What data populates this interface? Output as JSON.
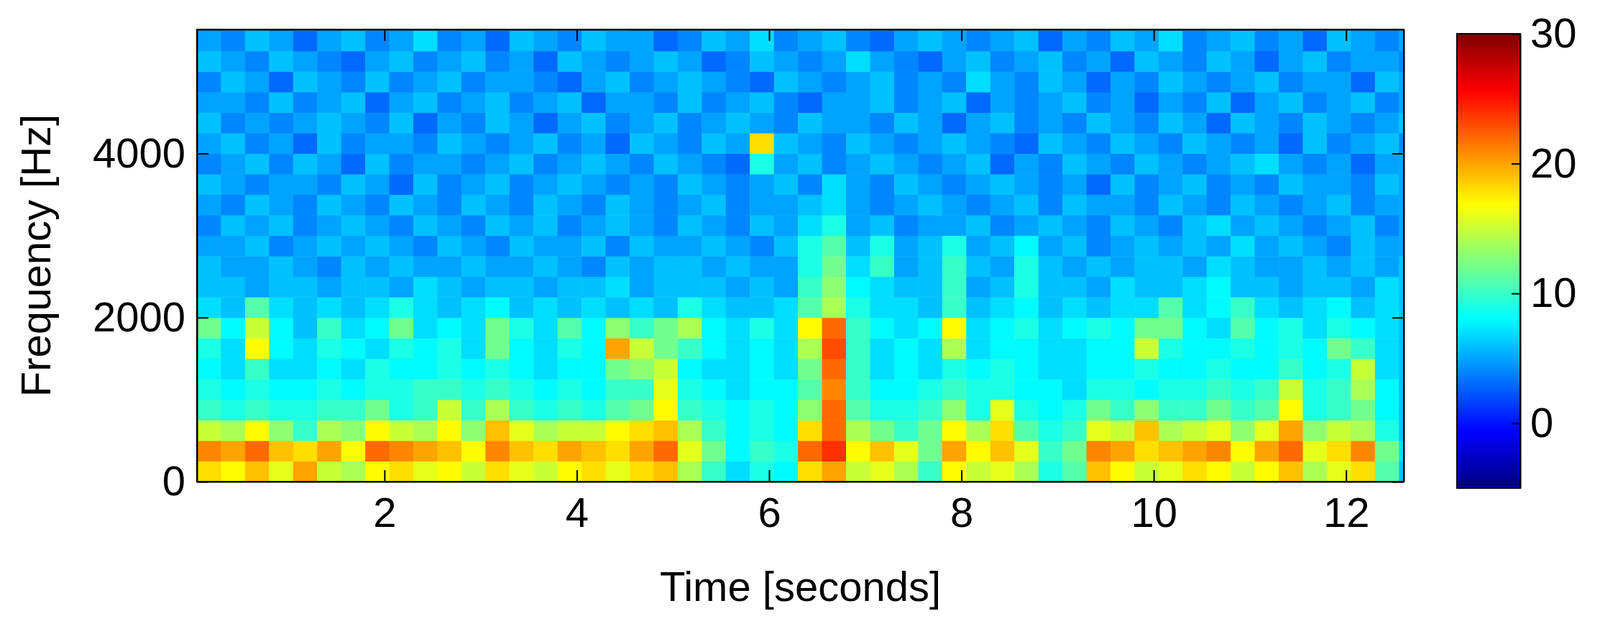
{
  "chart_data": {
    "type": "heatmap",
    "x_label": "Time [seconds]",
    "y_label": "Frequency [Hz]",
    "color": "jet",
    "xlim": [
      0.05,
      12.6
    ],
    "ylim": [
      0,
      5512
    ],
    "xticks": [
      2,
      4,
      6,
      8,
      10,
      12
    ],
    "yticks": [
      0,
      2000,
      4000
    ],
    "colorbar": {
      "lim": [
        -5,
        30
      ],
      "ticks": [
        0,
        10,
        20,
        30
      ]
    },
    "x": [
      0.175,
      0.425,
      0.675,
      0.925,
      1.175,
      1.425,
      1.675,
      1.925,
      2.175,
      2.425,
      2.675,
      2.925,
      3.175,
      3.425,
      3.675,
      3.925,
      4.175,
      4.425,
      4.675,
      4.925,
      5.175,
      5.425,
      5.675,
      5.925,
      6.175,
      6.425,
      6.675,
      6.925,
      7.175,
      7.425,
      7.675,
      7.925,
      8.175,
      8.425,
      8.675,
      8.925,
      9.175,
      9.425,
      9.675,
      9.925,
      10.175,
      10.425,
      10.675,
      10.925,
      11.175,
      11.425,
      11.675,
      11.925,
      12.175,
      12.425,
      12.675
    ],
    "y": [
      125,
      375,
      625,
      875,
      1125,
      1375,
      1625,
      1875,
      2125,
      2375,
      2625,
      2875,
      3125,
      3375,
      3625,
      3875,
      4125,
      4375,
      4625,
      4875,
      5125,
      5375,
      5625
    ],
    "cells": [
      [
        18,
        17,
        19,
        16,
        20,
        15,
        14,
        17,
        18,
        16,
        17,
        15,
        18,
        16,
        15,
        17,
        18,
        16,
        18,
        19,
        14,
        10,
        7,
        9,
        8,
        18,
        20,
        15,
        16,
        14,
        10,
        17,
        15,
        16,
        14,
        9,
        11,
        19,
        17,
        15,
        16,
        18,
        17,
        15,
        17,
        19,
        14,
        16,
        18,
        11,
        6
      ],
      [
        21,
        20,
        22,
        19,
        18,
        20,
        17,
        22,
        21,
        20,
        19,
        17,
        21,
        19,
        18,
        20,
        19,
        18,
        20,
        22,
        16,
        12,
        8,
        10,
        9,
        22,
        24,
        17,
        19,
        16,
        12,
        20,
        17,
        19,
        16,
        10,
        12,
        21,
        20,
        18,
        19,
        20,
        21,
        17,
        20,
        22,
        16,
        18,
        21,
        12,
        7
      ],
      [
        15,
        14,
        17,
        13,
        10,
        14,
        13,
        17,
        15,
        14,
        17,
        13,
        19,
        16,
        14,
        15,
        15,
        17,
        18,
        19,
        14,
        10,
        8,
        9,
        8,
        18,
        22,
        14,
        12,
        10,
        12,
        17,
        14,
        18,
        11,
        9,
        10,
        16,
        15,
        19,
        14,
        15,
        16,
        13,
        16,
        20,
        13,
        15,
        14,
        9,
        6
      ],
      [
        10,
        9,
        10,
        9,
        9,
        10,
        10,
        12,
        9,
        10,
        15,
        10,
        14,
        10,
        9,
        10,
        9,
        11,
        12,
        17,
        10,
        9,
        8,
        9,
        8,
        13,
        22,
        11,
        9,
        9,
        10,
        13,
        9,
        16,
        9,
        8,
        9,
        12,
        10,
        13,
        10,
        10,
        12,
        10,
        11,
        17,
        9,
        10,
        12,
        8,
        6
      ],
      [
        9,
        8,
        9,
        8,
        8,
        9,
        8,
        9,
        9,
        10,
        10,
        9,
        10,
        9,
        8,
        9,
        8,
        10,
        10,
        16,
        9,
        8,
        7,
        8,
        8,
        11,
        21,
        10,
        8,
        8,
        9,
        10,
        9,
        9,
        8,
        8,
        7,
        9,
        9,
        8,
        9,
        9,
        10,
        9,
        10,
        15,
        9,
        10,
        14,
        8,
        6
      ],
      [
        8,
        7,
        10,
        7,
        7,
        8,
        7,
        9,
        8,
        8,
        9,
        8,
        9,
        8,
        7,
        8,
        8,
        12,
        13,
        15,
        8,
        7,
        7,
        8,
        7,
        12,
        22,
        10,
        7,
        8,
        7,
        9,
        8,
        9,
        8,
        7,
        7,
        8,
        8,
        9,
        8,
        8,
        9,
        8,
        8,
        10,
        8,
        9,
        15,
        7,
        6
      ],
      [
        9,
        7,
        17,
        8,
        7,
        9,
        8,
        7,
        9,
        8,
        9,
        7,
        12,
        8,
        7,
        9,
        8,
        20,
        15,
        12,
        10,
        8,
        7,
        8,
        7,
        14,
        23,
        10,
        7,
        8,
        7,
        14,
        7,
        8,
        8,
        7,
        7,
        8,
        8,
        15,
        9,
        8,
        8,
        9,
        8,
        9,
        8,
        12,
        10,
        7,
        6
      ],
      [
        12,
        8,
        15,
        8,
        6,
        10,
        7,
        8,
        12,
        7,
        8,
        7,
        12,
        9,
        7,
        11,
        8,
        13,
        10,
        12,
        14,
        8,
        7,
        9,
        7,
        17,
        22,
        10,
        8,
        7,
        8,
        17,
        7,
        8,
        9,
        7,
        8,
        9,
        8,
        12,
        12,
        8,
        7,
        11,
        8,
        9,
        7,
        9,
        8,
        7,
        6
      ],
      [
        7,
        6,
        11,
        7,
        6,
        7,
        6,
        7,
        9,
        7,
        6,
        7,
        8,
        6,
        7,
        6,
        7,
        6,
        7,
        6,
        9,
        7,
        6,
        6,
        7,
        11,
        14,
        9,
        7,
        7,
        6,
        10,
        6,
        7,
        8,
        6,
        7,
        6,
        7,
        7,
        11,
        7,
        8,
        10,
        7,
        6,
        7,
        8,
        6,
        7,
        6
      ],
      [
        6,
        6,
        5,
        6,
        6,
        5,
        6,
        6,
        5,
        7,
        6,
        5,
        6,
        6,
        5,
        6,
        6,
        7,
        5,
        6,
        6,
        6,
        5,
        6,
        5,
        10,
        13,
        8,
        7,
        6,
        6,
        10,
        5,
        6,
        9,
        6,
        6,
        5,
        7,
        6,
        6,
        7,
        8,
        6,
        6,
        5,
        6,
        6,
        5,
        7,
        6
      ],
      [
        6,
        5,
        5,
        6,
        5,
        4,
        6,
        5,
        6,
        5,
        5,
        6,
        5,
        5,
        6,
        5,
        4,
        6,
        5,
        6,
        6,
        5,
        6,
        5,
        5,
        9,
        12,
        7,
        10,
        5,
        6,
        10,
        6,
        5,
        9,
        6,
        5,
        6,
        5,
        6,
        6,
        5,
        7,
        6,
        5,
        5,
        6,
        5,
        6,
        5,
        6
      ],
      [
        5,
        5,
        6,
        4,
        5,
        6,
        5,
        6,
        5,
        4,
        6,
        5,
        4,
        6,
        5,
        5,
        6,
        4,
        6,
        5,
        5,
        6,
        5,
        4,
        6,
        9,
        11,
        6,
        9,
        5,
        6,
        9,
        5,
        6,
        8,
        5,
        6,
        4,
        5,
        6,
        5,
        6,
        5,
        7,
        5,
        6,
        5,
        4,
        6,
        5,
        5
      ],
      [
        4,
        6,
        5,
        6,
        4,
        5,
        6,
        5,
        4,
        6,
        5,
        4,
        6,
        5,
        6,
        4,
        5,
        6,
        5,
        4,
        6,
        5,
        4,
        6,
        5,
        7,
        9,
        5,
        6,
        4,
        5,
        5,
        6,
        4,
        5,
        6,
        5,
        4,
        6,
        5,
        4,
        6,
        7,
        5,
        6,
        5,
        4,
        5,
        6,
        4,
        5
      ],
      [
        5,
        4,
        6,
        5,
        4,
        6,
        5,
        4,
        6,
        5,
        4,
        6,
        5,
        4,
        6,
        5,
        4,
        6,
        5,
        4,
        5,
        6,
        4,
        5,
        5,
        6,
        7,
        5,
        4,
        5,
        6,
        5,
        4,
        5,
        6,
        4,
        6,
        5,
        5,
        4,
        6,
        5,
        4,
        6,
        5,
        4,
        5,
        6,
        4,
        5,
        5
      ],
      [
        6,
        5,
        4,
        5,
        5,
        4,
        6,
        5,
        3,
        6,
        4,
        5,
        6,
        4,
        5,
        6,
        5,
        4,
        5,
        4,
        6,
        5,
        4,
        5,
        6,
        4,
        7,
        5,
        4,
        6,
        5,
        4,
        5,
        6,
        5,
        4,
        5,
        3,
        6,
        4,
        5,
        6,
        4,
        5,
        4,
        6,
        5,
        5,
        4,
        6,
        5
      ],
      [
        4,
        5,
        6,
        4,
        6,
        5,
        3,
        6,
        4,
        5,
        5,
        4,
        5,
        6,
        4,
        5,
        6,
        5,
        4,
        6,
        5,
        4,
        3,
        9,
        5,
        6,
        4,
        5,
        6,
        5,
        4,
        5,
        6,
        3,
        5,
        4,
        6,
        5,
        4,
        6,
        5,
        4,
        5,
        6,
        7,
        5,
        4,
        5,
        3,
        5,
        5
      ],
      [
        5,
        6,
        4,
        5,
        3,
        6,
        4,
        5,
        5,
        4,
        6,
        5,
        4,
        5,
        6,
        4,
        5,
        3,
        6,
        5,
        4,
        6,
        5,
        18,
        6,
        5,
        4,
        6,
        5,
        4,
        5,
        6,
        5,
        4,
        3,
        6,
        5,
        4,
        6,
        5,
        4,
        6,
        5,
        4,
        5,
        3,
        6,
        4,
        5,
        6,
        4
      ],
      [
        6,
        4,
        5,
        4,
        5,
        6,
        5,
        4,
        6,
        3,
        5,
        4,
        6,
        5,
        3,
        5,
        6,
        4,
        5,
        6,
        4,
        5,
        6,
        5,
        4,
        6,
        5,
        5,
        4,
        6,
        5,
        3,
        5,
        6,
        4,
        5,
        4,
        6,
        5,
        4,
        6,
        5,
        3,
        6,
        5,
        4,
        6,
        5,
        4,
        5,
        6
      ],
      [
        5,
        5,
        4,
        6,
        4,
        5,
        6,
        3,
        5,
        6,
        4,
        5,
        6,
        4,
        5,
        6,
        3,
        5,
        5,
        4,
        6,
        4,
        5,
        6,
        4,
        3,
        5,
        5,
        6,
        4,
        5,
        6,
        3,
        5,
        4,
        5,
        6,
        4,
        5,
        3,
        5,
        4,
        6,
        3,
        5,
        6,
        4,
        5,
        6,
        4,
        5
      ],
      [
        4,
        6,
        5,
        3,
        6,
        5,
        4,
        6,
        4,
        5,
        6,
        4,
        5,
        5,
        4,
        3,
        5,
        6,
        4,
        5,
        6,
        5,
        4,
        3,
        6,
        5,
        4,
        5,
        6,
        4,
        5,
        4,
        7,
        5,
        4,
        6,
        5,
        3,
        5,
        4,
        6,
        5,
        4,
        5,
        6,
        4,
        5,
        5,
        3,
        6,
        5
      ],
      [
        6,
        5,
        4,
        6,
        5,
        4,
        3,
        5,
        6,
        4,
        5,
        6,
        4,
        5,
        3,
        6,
        5,
        4,
        5,
        6,
        5,
        3,
        4,
        6,
        5,
        4,
        5,
        7,
        5,
        4,
        3,
        5,
        6,
        4,
        5,
        6,
        4,
        5,
        3,
        6,
        5,
        4,
        6,
        5,
        3,
        5,
        6,
        4,
        5,
        5,
        4
      ],
      [
        5,
        4,
        6,
        5,
        3,
        5,
        6,
        4,
        5,
        7,
        4,
        5,
        3,
        6,
        5,
        4,
        6,
        5,
        5,
        3,
        4,
        6,
        5,
        7,
        4,
        5,
        6,
        4,
        3,
        5,
        6,
        5,
        4,
        5,
        6,
        3,
        5,
        4,
        6,
        5,
        7,
        4,
        5,
        6,
        4,
        5,
        3,
        6,
        5,
        4,
        5
      ],
      [
        4,
        5,
        5,
        3,
        6,
        4,
        5,
        6,
        4,
        5,
        5,
        3,
        6,
        4,
        5,
        5,
        4,
        6,
        3,
        5,
        6,
        4,
        5,
        5,
        3,
        6,
        4,
        5,
        6,
        4,
        5,
        6,
        4,
        3,
        5,
        6,
        5,
        4,
        5,
        6,
        4,
        5,
        6,
        3,
        5,
        4,
        6,
        5,
        4,
        5,
        5
      ]
    ]
  }
}
